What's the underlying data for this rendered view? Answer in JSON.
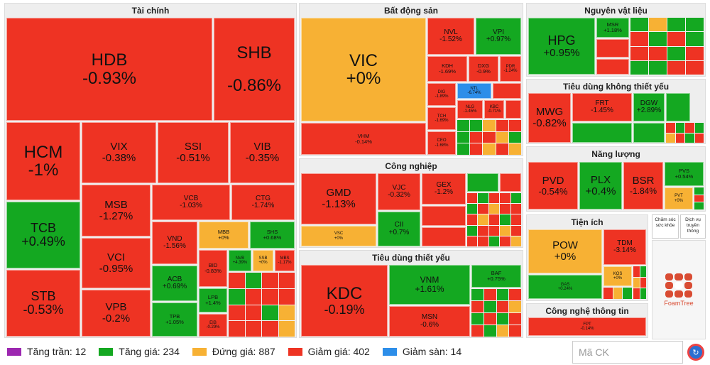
{
  "colors": {
    "red": "#ee3323",
    "green": "#14a821",
    "yellow": "#f7b134",
    "blue": "#2d8ee9",
    "purple": "#9c27b0"
  },
  "sectors": {
    "finance": "Tài chính",
    "real_estate": "Bất động sản",
    "materials": "Nguyên vật liệu",
    "consumer_disc": "Tiêu dùng không thiết yếu",
    "industrials": "Công nghiệp",
    "energy": "Năng lượng",
    "staples": "Tiêu dùng thiết yếu",
    "utilities": "Tiện ích",
    "it": "Công nghệ thông tin",
    "health": "Chăm sóc sức khỏe",
    "telecom": "Dịch vụ truyền thông"
  },
  "tiles": {
    "HDB": {
      "code": "HDB",
      "change": "-0.93%"
    },
    "SHB": {
      "code": "SHB",
      "change": "-0.86%"
    },
    "HCM": {
      "code": "HCM",
      "change": "-1%"
    },
    "TCB": {
      "code": "TCB",
      "change": "+0.49%"
    },
    "STB": {
      "code": "STB",
      "change": "-0.53%"
    },
    "VIX": {
      "code": "VIX",
      "change": "-0.38%"
    },
    "SSI": {
      "code": "SSI",
      "change": "-0.51%"
    },
    "VIB": {
      "code": "VIB",
      "change": "-0.35%"
    },
    "MSB": {
      "code": "MSB",
      "change": "-1.27%"
    },
    "VCI": {
      "code": "VCI",
      "change": "-0.95%"
    },
    "VPB": {
      "code": "VPB",
      "change": "-0.2%"
    },
    "VCB": {
      "code": "VCB",
      "change": "-1.03%"
    },
    "CTG": {
      "code": "CTG",
      "change": "-1.74%"
    },
    "VND": {
      "code": "VND",
      "change": "-1.56%"
    },
    "MBB": {
      "code": "MBB",
      "change": "+0%"
    },
    "SHS": {
      "code": "SHS",
      "change": "+0.68%"
    },
    "ACB": {
      "code": "ACB",
      "change": "+0.69%"
    },
    "TPB": {
      "code": "TPB",
      "change": "+1.05%"
    },
    "BID": {
      "code": "BID",
      "change": "-0.83%"
    },
    "NVB": {
      "code": "NVB",
      "change": "+4.39%"
    },
    "SSB": {
      "code": "SSB",
      "change": "+0%"
    },
    "MBS": {
      "code": "MBS",
      "change": "-1.17%"
    },
    "LPB": {
      "code": "LPB",
      "change": "+1.4%"
    },
    "EIB": {
      "code": "EIB",
      "change": "-0.29%"
    },
    "VIC": {
      "code": "VIC",
      "change": "+0%"
    },
    "VHM": {
      "code": "VHM",
      "change": "-0.14%"
    },
    "NVL": {
      "code": "NVL",
      "change": "-1.52%"
    },
    "VPI": {
      "code": "VPI",
      "change": "+0.97%"
    },
    "KDH": {
      "code": "KDH",
      "change": "-1.69%"
    },
    "DXG": {
      "code": "DXG",
      "change": "-0.9%"
    },
    "PDR": {
      "code": "PDR",
      "change": "-1.24%"
    },
    "DIG": {
      "code": "DIG",
      "change": "-1.89%"
    },
    "TCH": {
      "code": "TCH",
      "change": "-1.69%"
    },
    "CEO": {
      "code": "CEO",
      "change": "-1.68%"
    },
    "NTL": {
      "code": "NTL",
      "change": "-6.74%"
    },
    "NLG": {
      "code": "NLG",
      "change": "-1.45%"
    },
    "KBC": {
      "code": "KBC",
      "change": "-0.71%"
    },
    "HPG": {
      "code": "HPG",
      "change": "+0.95%"
    },
    "MSR": {
      "code": "MSR",
      "change": "+1.18%"
    },
    "MWG": {
      "code": "MWG",
      "change": "-0.82%"
    },
    "FRT": {
      "code": "FRT",
      "change": "-1.45%"
    },
    "DGW": {
      "code": "DGW",
      "change": "+2.89%"
    },
    "GMD": {
      "code": "GMD",
      "change": "-1.13%"
    },
    "VJC": {
      "code": "VJC",
      "change": "-0.32%"
    },
    "GEX": {
      "code": "GEX",
      "change": "-1.2%"
    },
    "VSC": {
      "code": "VSC",
      "change": "+0%"
    },
    "CII": {
      "code": "CII",
      "change": "+0.7%"
    },
    "PVD": {
      "code": "PVD",
      "change": "-0.54%"
    },
    "PLX": {
      "code": "PLX",
      "change": "+0.4%"
    },
    "BSR": {
      "code": "BSR",
      "change": "-1.84%"
    },
    "PVS": {
      "code": "PVS",
      "change": "+0.54%"
    },
    "PVT": {
      "code": "PVT",
      "change": "+0%"
    },
    "KDC": {
      "code": "KDC",
      "change": "-0.19%"
    },
    "VNM": {
      "code": "VNM",
      "change": "+1.61%"
    },
    "MSN": {
      "code": "MSN",
      "change": "-0.6%"
    },
    "BAF": {
      "code": "BAF",
      "change": "+0.75%"
    },
    "POW": {
      "code": "POW",
      "change": "+0%"
    },
    "TDM": {
      "code": "TDM",
      "change": "-3.14%"
    },
    "GAS": {
      "code": "GAS",
      "change": "+0.24%"
    },
    "KOS": {
      "code": "KOS",
      "change": "+0%"
    },
    "FPT": {
      "code": "FPT",
      "change": "-0.14%"
    }
  },
  "legend": {
    "ceiling": "Tăng trần: 12",
    "up": "Tăng giá: 234",
    "flat": "Đứng giá: 887",
    "down": "Giảm giá: 402",
    "floor": "Giảm sàn: 14"
  },
  "search": {
    "placeholder": "Mã CK"
  },
  "foamtree": {
    "label": "FoamTree"
  }
}
